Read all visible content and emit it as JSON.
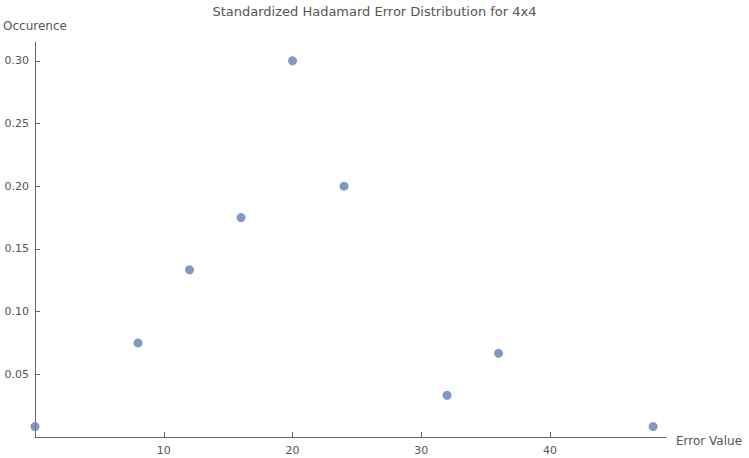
{
  "chart_data": {
    "type": "scatter",
    "title": "Standardized Hadamard Error Distribution for 4x4",
    "x_label": "Error Value",
    "y_label": "Occurence",
    "x": [
      0,
      8,
      12,
      16,
      20,
      24,
      32,
      36,
      48
    ],
    "values": [
      0.0083,
      0.075,
      0.1333,
      0.175,
      0.3,
      0.2,
      0.0333,
      0.0667,
      0.0083
    ],
    "color": "#5e81b5",
    "marker": "circle",
    "xlim": [
      0,
      49
    ],
    "xticks": [
      10,
      20,
      30,
      40
    ],
    "ylim": [
      0,
      0.315
    ],
    "yticks": [
      {
        "value": 0.05,
        "label": "0.05"
      },
      {
        "value": 0.1,
        "label": "0.10"
      },
      {
        "value": 0.15,
        "label": "0.15"
      },
      {
        "value": 0.2,
        "label": "0.20"
      },
      {
        "value": 0.25,
        "label": "0.25"
      },
      {
        "value": 0.3,
        "label": "0.30"
      }
    ],
    "grid": false
  }
}
